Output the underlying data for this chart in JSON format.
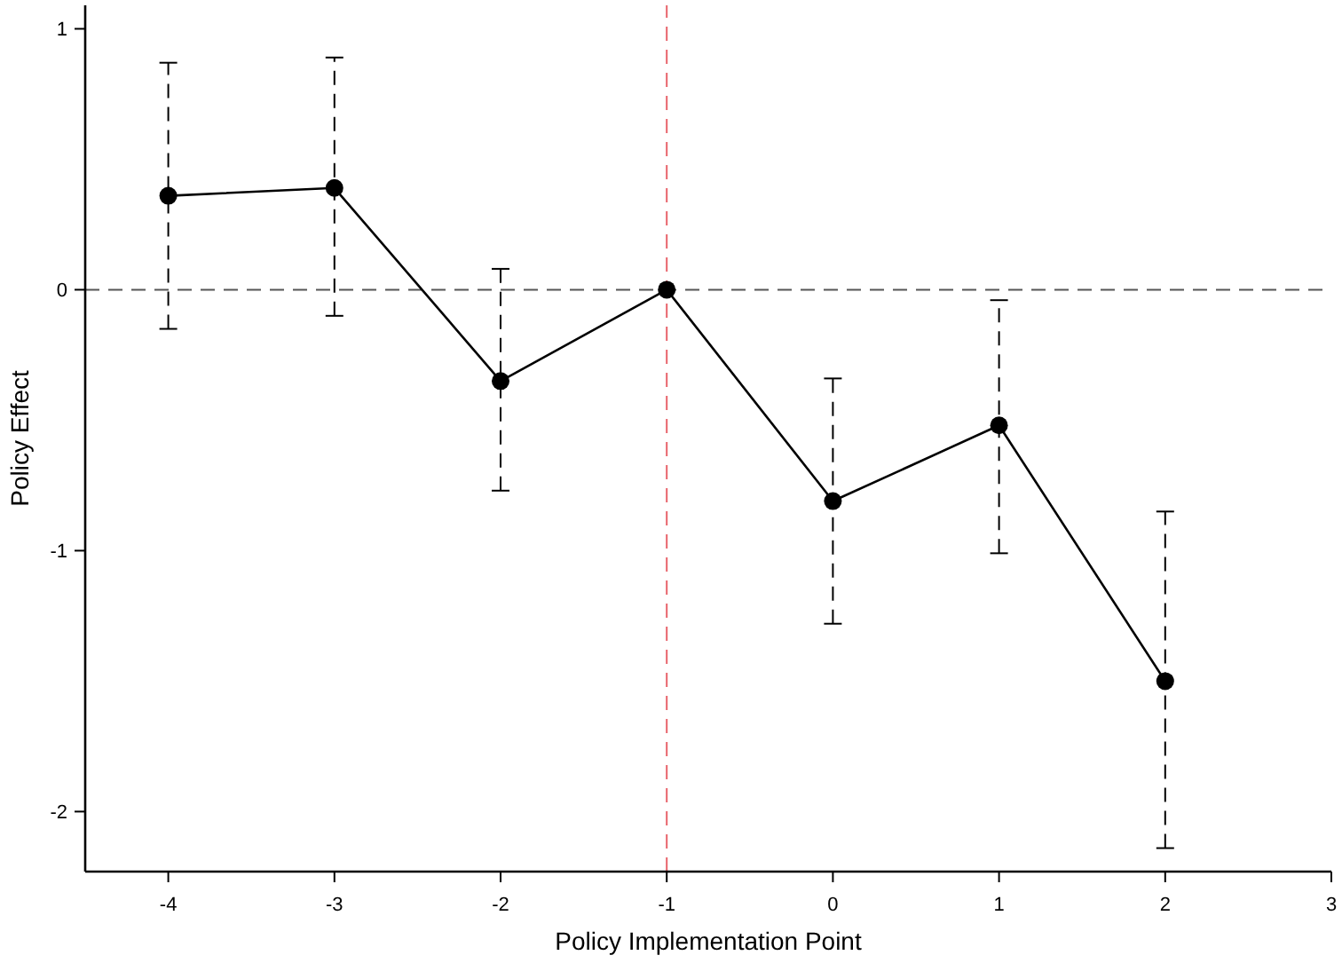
{
  "chart_data": {
    "type": "line",
    "xlabel": "Policy Implementation Point",
    "ylabel": "Policy Effect",
    "x": [
      -4,
      -3,
      -2,
      -1,
      0,
      1,
      2
    ],
    "series": [
      {
        "color": "#000000",
        "values": [
          0.36,
          0.39,
          -0.35,
          0,
          -0.81,
          -0.52,
          -1.5
        ],
        "errors": [
          [
            -0.15,
            0.87
          ],
          [
            -0.1,
            0.89
          ],
          [
            -0.77,
            0.08
          ],
          null,
          [
            -1.28,
            -0.34
          ],
          [
            -1.01,
            -0.04
          ],
          [
            -2.14,
            -0.85
          ]
        ]
      }
    ],
    "marker": "circle",
    "line_style": "solid",
    "xlim": [
      -4.5,
      3
    ],
    "xticks": [
      -4,
      -3,
      -2,
      -1,
      0,
      1,
      2,
      3
    ],
    "ylim": [
      -2.23,
      1.09
    ],
    "yticks": [
      -2,
      -1,
      0,
      1
    ],
    "ref_lines": [
      {
        "axis": "y",
        "value": 0,
        "color": "#555555",
        "line_style": "dashed"
      },
      {
        "axis": "x",
        "value": -1,
        "color": "#e8636b",
        "line_style": "dashed"
      }
    ]
  }
}
